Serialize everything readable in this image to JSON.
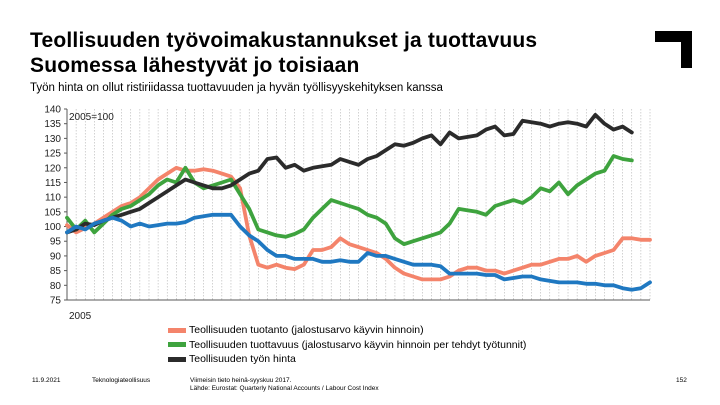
{
  "title_lines": [
    "Teollisuuden työvoimakustannukset ja tuottavuus",
    "Suomessa lähestyvät jo toisiaan"
  ],
  "subtitle": "Työn hinta on ollut ristiriidassa tuottavuuden ja hyvän työllisyyskehityksen kanssa",
  "footer": {
    "date": "11.9.2021",
    "org": "Teknologiateollisuus",
    "source_line1": "Viimeisin tieto heinä-syyskuu 2017.",
    "source_line2": "Lähde: Eurostat: Quarterly National Accounts / Labour Cost Index",
    "page": "152"
  },
  "colors": {
    "production": "#f4846b",
    "productivity": "#3ea33e",
    "labour_cost": "#2b2b2b",
    "blue": "#1f78c1",
    "axis": "#595959",
    "grid": "#a6a6a6"
  },
  "chart_data": {
    "type": "line",
    "title": "",
    "annotation": "2005=100",
    "x_start_label": "2005",
    "ylim": [
      75,
      140
    ],
    "yticks": [
      75,
      80,
      85,
      90,
      95,
      100,
      105,
      110,
      115,
      120,
      125,
      130,
      135,
      140
    ],
    "grid": "vertical",
    "series": [
      {
        "name": "Teollisuuden tuotanto (jalostusarvo käyvin hinnoin)",
        "color": "#f4846b",
        "legend": true,
        "values": [
          100.5,
          98,
          99.5,
          101,
          103,
          105,
          107,
          108,
          110,
          113,
          116,
          118,
          120,
          119,
          119,
          119.5,
          119,
          118,
          117,
          113,
          97,
          87,
          86,
          87,
          86,
          85.5,
          87,
          92,
          92,
          93,
          96,
          94,
          93,
          92,
          91,
          89,
          86,
          84,
          83,
          82,
          82,
          82,
          83,
          85,
          86,
          86,
          85,
          85,
          84,
          85,
          86,
          87,
          87,
          88,
          89,
          89,
          90,
          88,
          90,
          91,
          92,
          96,
          96,
          95.5,
          95.5
        ]
      },
      {
        "name": "Teollisuuden tuottavuus (jalostusarvo käyvin hinnoin per tehdyt työtunnit)",
        "color": "#3ea33e",
        "legend": true,
        "values": [
          103,
          99,
          102,
          98,
          101,
          104,
          106,
          107,
          109,
          111,
          114,
          116,
          115,
          120,
          115,
          113,
          114,
          115,
          116,
          111,
          106,
          99,
          98,
          97,
          96.5,
          97.5,
          99,
          103,
          106,
          109,
          108,
          107,
          106,
          104,
          103,
          101,
          96,
          94,
          95,
          96,
          97,
          98,
          101,
          106,
          105.5,
          105,
          104,
          107,
          108,
          109,
          108,
          110,
          113,
          112,
          115,
          111,
          114,
          116,
          118,
          119,
          124,
          123,
          122.5
        ]
      },
      {
        "name": "Teollisuuden työn hinta",
        "color": "#2b2b2b",
        "legend": true,
        "values": [
          98,
          99,
          101,
          100.5,
          102,
          103,
          104,
          105,
          106,
          108,
          110,
          112,
          114,
          116,
          115,
          114,
          113,
          113,
          114,
          116,
          118,
          119,
          123,
          123.5,
          120,
          121,
          119,
          120,
          120.5,
          121,
          123,
          122,
          121,
          123,
          124,
          126,
          128,
          127.5,
          128.5,
          130,
          131,
          128,
          132,
          130,
          130.5,
          131,
          133,
          134,
          131,
          131.5,
          136,
          135.5,
          135,
          134,
          135,
          135.5,
          135,
          134,
          138,
          135,
          133,
          134,
          132
        ]
      },
      {
        "name": "",
        "color": "#1f78c1",
        "legend": false,
        "values": [
          98,
          100,
          99,
          101,
          102,
          103,
          102,
          100,
          101,
          100,
          100.5,
          101,
          101,
          101.5,
          103,
          103.5,
          104,
          104,
          104,
          100,
          97,
          95,
          92,
          90,
          90,
          89,
          89,
          89,
          88,
          88,
          88.5,
          88,
          88,
          91,
          90,
          90,
          89,
          88,
          87,
          87,
          87,
          86.5,
          84,
          84,
          84,
          84,
          83.5,
          83.5,
          82,
          82.5,
          83,
          83,
          82,
          81.5,
          81,
          81,
          81,
          80.5,
          80.5,
          80,
          80,
          79,
          78.5,
          79,
          81
        ]
      }
    ]
  }
}
